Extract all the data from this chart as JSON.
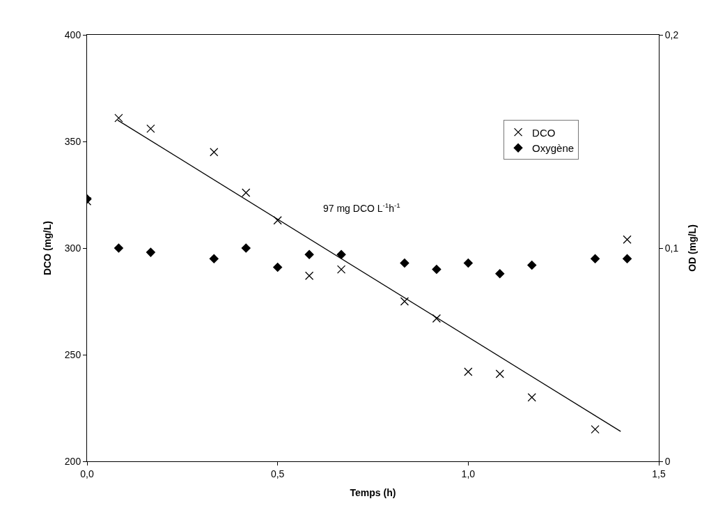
{
  "chart_data": {
    "type": "scatter",
    "xlabel": "Temps (h)",
    "ylabel": "DCO (mg/L)",
    "y2label": "OD (mg/L)",
    "x": [
      0,
      0.083,
      0.167,
      0.333,
      0.417,
      0.5,
      0.583,
      0.667,
      0.833,
      0.917,
      1.0,
      1.083,
      1.167,
      1.333,
      1.417
    ],
    "series": [
      {
        "name": "DCO",
        "color": "#000000",
        "marker": "cross",
        "values": [
          322,
          361,
          356,
          345,
          326,
          313,
          287,
          290,
          275,
          267,
          242,
          241,
          230,
          215,
          304
        ]
      },
      {
        "name": "Oxygène",
        "color": "#000000",
        "marker": "diamond",
        "axis": "y2",
        "values": [
          0.123,
          0.1,
          0.098,
          0.095,
          0.1,
          0.091,
          0.097,
          0.097,
          0.093,
          0.09,
          0.093,
          0.088,
          0.092,
          0.095,
          0.095
        ]
      },
      {
        "type": "line",
        "color": "#000000",
        "marker": "none",
        "line_style": "solid",
        "x": [
          0.08,
          1.4
        ],
        "values": [
          360,
          214
        ]
      }
    ],
    "xlim": [
      0,
      1.5
    ],
    "xticks": [
      {
        "value": 0,
        "label": "0,0"
      },
      {
        "value": 0.5,
        "label": "0,5"
      },
      {
        "value": 1.0,
        "label": "1,0"
      },
      {
        "value": 1.5,
        "label": "1,5"
      }
    ],
    "ylim": [
      200,
      400
    ],
    "yticks": [
      200,
      250,
      300,
      350,
      400
    ],
    "y2lim": [
      0,
      0.2
    ],
    "y2ticks": [
      0,
      {
        "value": 0.1,
        "label": "0,1"
      },
      {
        "value": 0.2,
        "label": "0,2"
      }
    ],
    "annotations": [
      "97 mg DCO L$^{-1}$h$^{-1}$"
    ],
    "legend": "top right"
  }
}
